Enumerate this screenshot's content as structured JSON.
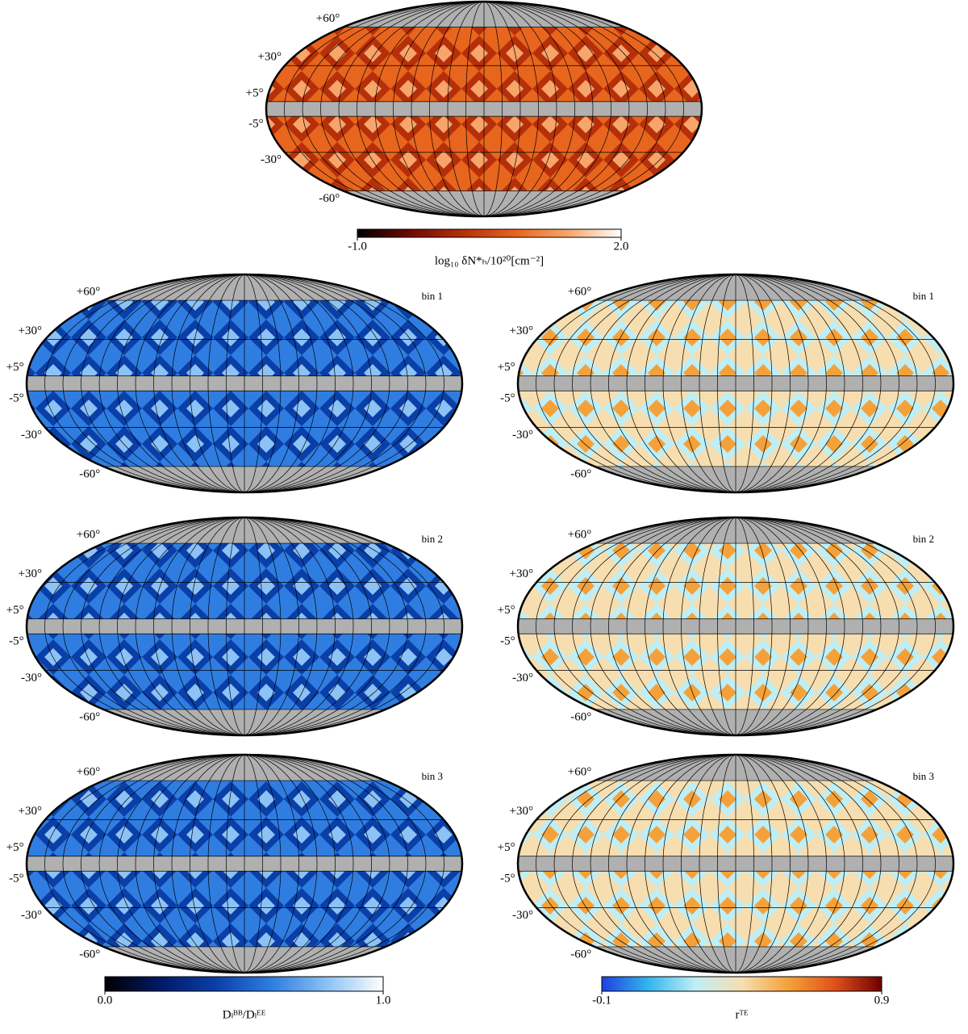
{
  "lat_ticks": [
    {
      "value": 60,
      "label": "+60°"
    },
    {
      "value": 30,
      "label": "+30°"
    },
    {
      "value": 5,
      "label": "+5°"
    },
    {
      "value": -5,
      "label": "-5°"
    },
    {
      "value": -30,
      "label": "-30°"
    },
    {
      "value": -60,
      "label": "-60°"
    }
  ],
  "mask_color": "#b0b0b0",
  "top_colorbar": {
    "colors": [
      "#000000",
      "#6e0a02",
      "#b5300a",
      "#e8651e",
      "#f7a56b",
      "#ffffff"
    ],
    "ticks": [
      {
        "value": -1,
        "label": "-1.0"
      },
      {
        "value": 2,
        "label": "2.0"
      }
    ],
    "range": [
      -1,
      2
    ],
    "label": "log₁₀ δN*ₕ/10²⁰[cm⁻²]"
  },
  "left_colorbar": {
    "colors": [
      "#000000",
      "#001a66",
      "#0a3fa8",
      "#2f7de0",
      "#8cc2f5",
      "#ffffff"
    ],
    "ticks": [
      {
        "value": 0,
        "label": "0.0"
      },
      {
        "value": 1,
        "label": "1.0"
      }
    ],
    "range": [
      0,
      1
    ],
    "label": "Dₗᴮᴮ/Dₗᴱᴱ"
  },
  "right_colorbar": {
    "colors": [
      "#1f3fe0",
      "#33b6ee",
      "#bfeef5",
      "#f7deb0",
      "#f5a13a",
      "#e0501a",
      "#6e0000"
    ],
    "ticks": [
      {
        "value": -0.1,
        "label": "-0.1"
      },
      {
        "value": 0.9,
        "label": "0.9"
      }
    ],
    "range": [
      -0.1,
      0.9
    ],
    "label": "rᵀᴱ"
  },
  "rows": [
    {
      "bin_label": "bin 1"
    },
    {
      "bin_label": "bin 2"
    },
    {
      "bin_label": "bin 3"
    }
  ]
}
